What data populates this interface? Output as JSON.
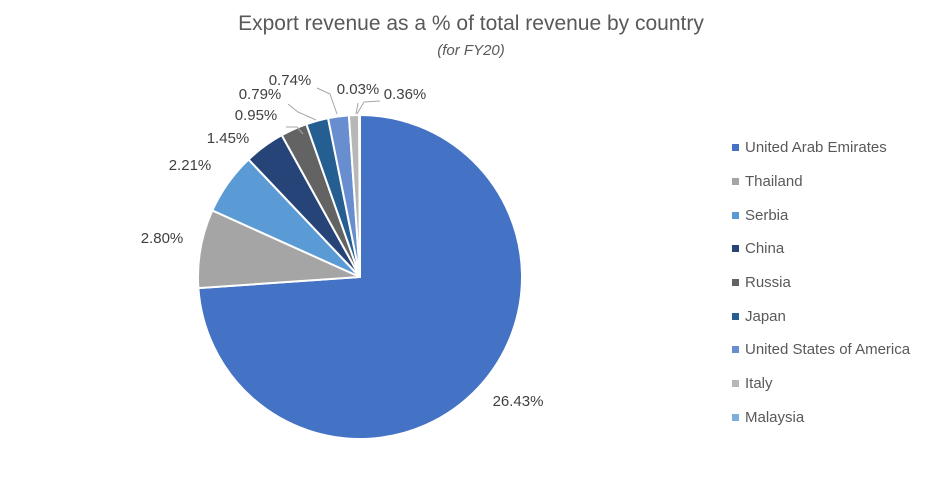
{
  "chart_data": {
    "type": "pie",
    "title": "Export revenue as a % of total revenue by country",
    "subtitle": "(for FY20)",
    "labels": [
      "United Arab Emirates",
      "Thailand",
      "Serbia",
      "China",
      "Russia",
      "Japan",
      "United States of America",
      "Italy",
      "Malaysia"
    ],
    "values": [
      26.43,
      2.8,
      2.21,
      1.45,
      0.95,
      0.79,
      0.74,
      0.36,
      0.03
    ],
    "data_labels": [
      "26.43%",
      "2.80%",
      "2.21%",
      "1.45%",
      "0.95%",
      "0.79%",
      "0.74%",
      "0.36%",
      "0.03%"
    ],
    "colors": [
      "#4472C4",
      "#A5A5A5",
      "#5B9BD5",
      "#264478",
      "#636363",
      "#255E91",
      "#698ED0",
      "#B7B7B7",
      "#7CAFDD"
    ],
    "legend_position": "right"
  }
}
